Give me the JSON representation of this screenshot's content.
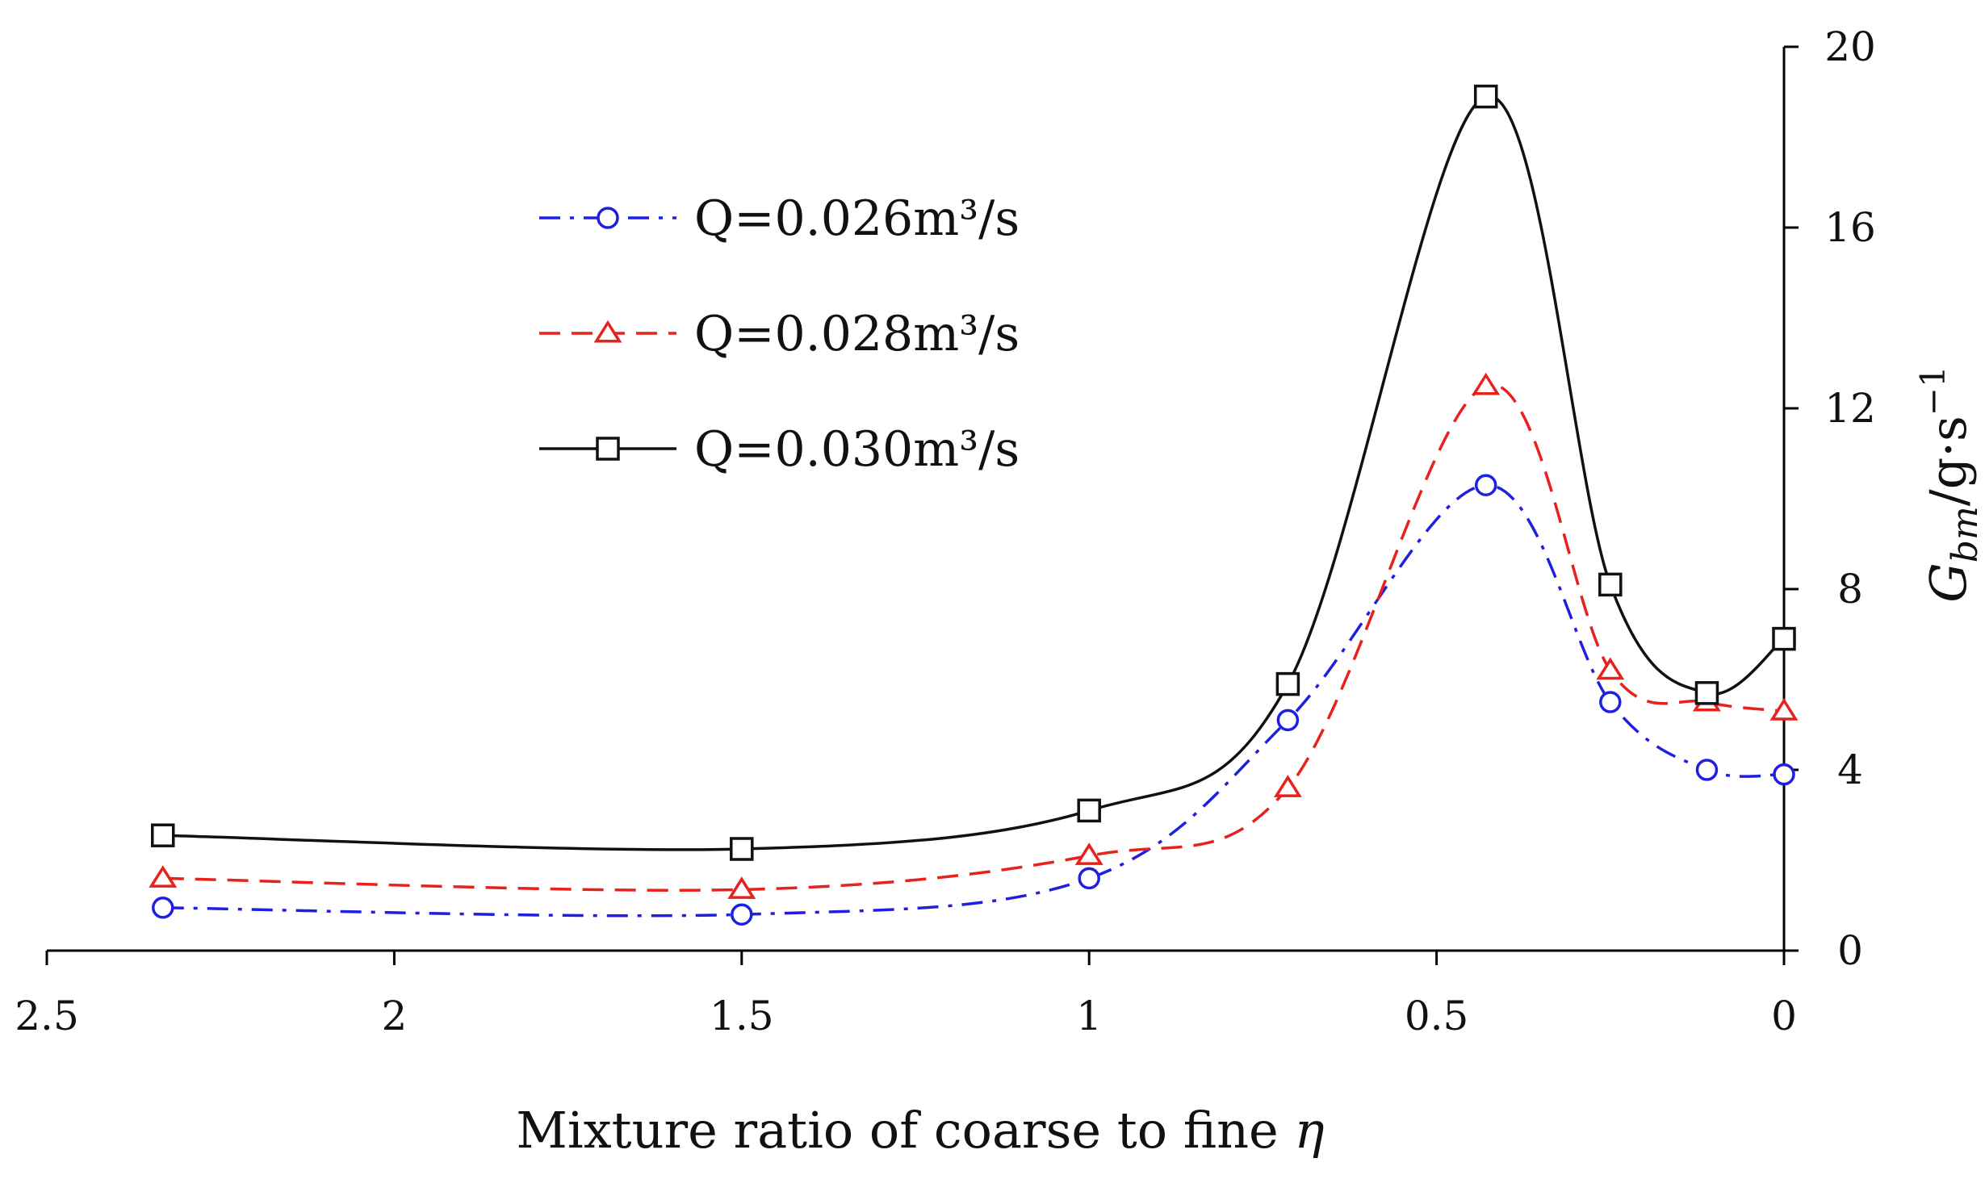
{
  "chart_data": {
    "type": "line",
    "title": "",
    "xlabel": "Mixture ratio of coarse to fine",
    "xlabel_symbol": "η",
    "ylabel_main": "G",
    "ylabel_sub": "bm",
    "ylabel_unit": "/g·s",
    "ylabel_exp": "−1",
    "x_reversed": true,
    "xlim": [
      2.5,
      0
    ],
    "ylim": [
      0,
      20
    ],
    "x_ticks": [
      2.5,
      2,
      1.5,
      1,
      0.5,
      0
    ],
    "x_tick_labels": [
      "2.5",
      "2",
      "1.5",
      "1",
      "0.5",
      "0"
    ],
    "y_ticks": [
      0,
      4,
      8,
      12,
      16,
      20
    ],
    "y_tick_labels": [
      "0",
      "4",
      "8",
      "12",
      "16",
      "20"
    ],
    "y_axis_position": "right",
    "grid": false,
    "legend_position": "upper-left",
    "series": [
      {
        "name": "Q=0.026m³/s",
        "color": "#1f1fe0",
        "dash": "dashdot",
        "marker": "circle",
        "x": [
          2.333,
          1.5,
          1.0,
          0.714,
          0.429,
          0.25,
          0.111,
          0.0
        ],
        "y": [
          0.95,
          0.8,
          1.6,
          5.1,
          10.3,
          5.5,
          4.0,
          3.9
        ]
      },
      {
        "name": "Q=0.028m³/s",
        "color": "#e8211d",
        "dash": "dashed",
        "marker": "triangle",
        "x": [
          2.333,
          1.5,
          1.0,
          0.714,
          0.429,
          0.25,
          0.111,
          0.0
        ],
        "y": [
          1.6,
          1.35,
          2.1,
          3.6,
          12.5,
          6.2,
          5.5,
          5.3
        ]
      },
      {
        "name": "Q=0.030m³/s",
        "color": "#111111",
        "dash": "solid",
        "marker": "square",
        "x": [
          2.333,
          1.5,
          1.0,
          0.714,
          0.429,
          0.25,
          0.111,
          0.0
        ],
        "y": [
          2.55,
          2.25,
          3.1,
          5.9,
          18.9,
          8.1,
          5.7,
          6.9
        ]
      }
    ]
  }
}
